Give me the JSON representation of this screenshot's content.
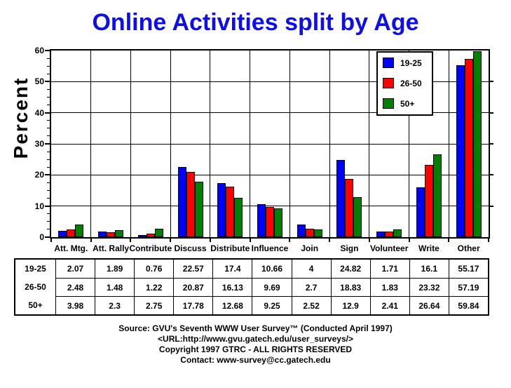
{
  "title": {
    "text": "Online Activities split by Age",
    "color": "#0d0df0"
  },
  "chart_data": {
    "type": "bar",
    "title": "Online Activities split by Age",
    "xlabel": "",
    "ylabel": "Percent",
    "ylim": [
      0,
      60
    ],
    "ytick_interval": 10,
    "yminor_interval": 2.5,
    "grid": true,
    "legend_position": "top-right",
    "categories": [
      "Att. Mtg.",
      "Att. Rally",
      "Contribute",
      "Discuss",
      "Distribute",
      "Influence",
      "Join",
      "Sign",
      "Volunteer",
      "Write",
      "Other"
    ],
    "series": [
      {
        "name": "19-25",
        "color": "#0000ff",
        "values": [
          2.07,
          1.89,
          0.76,
          22.57,
          17.4,
          10.66,
          4,
          24.82,
          1.71,
          16.1,
          55.17
        ]
      },
      {
        "name": "26-50",
        "color": "#ff0000",
        "values": [
          2.48,
          1.48,
          1.22,
          20.87,
          16.13,
          9.69,
          2.7,
          18.83,
          1.83,
          23.32,
          57.19
        ]
      },
      {
        "name": "50+",
        "color": "#008000",
        "values": [
          3.98,
          2.3,
          2.75,
          17.78,
          12.68,
          9.25,
          2.52,
          12.9,
          2.41,
          26.64,
          59.84
        ]
      }
    ]
  },
  "footer": {
    "lines": [
      "Source: GVU's Seventh WWW User Survey™ (Conducted April 1997)",
      "<URL:http://www.gvu.gatech.edu/user_surveys/>",
      "Copyright 1997 GTRC - ALL RIGHTS RESERVED",
      "Contact: www-survey@cc.gatech.edu"
    ]
  }
}
